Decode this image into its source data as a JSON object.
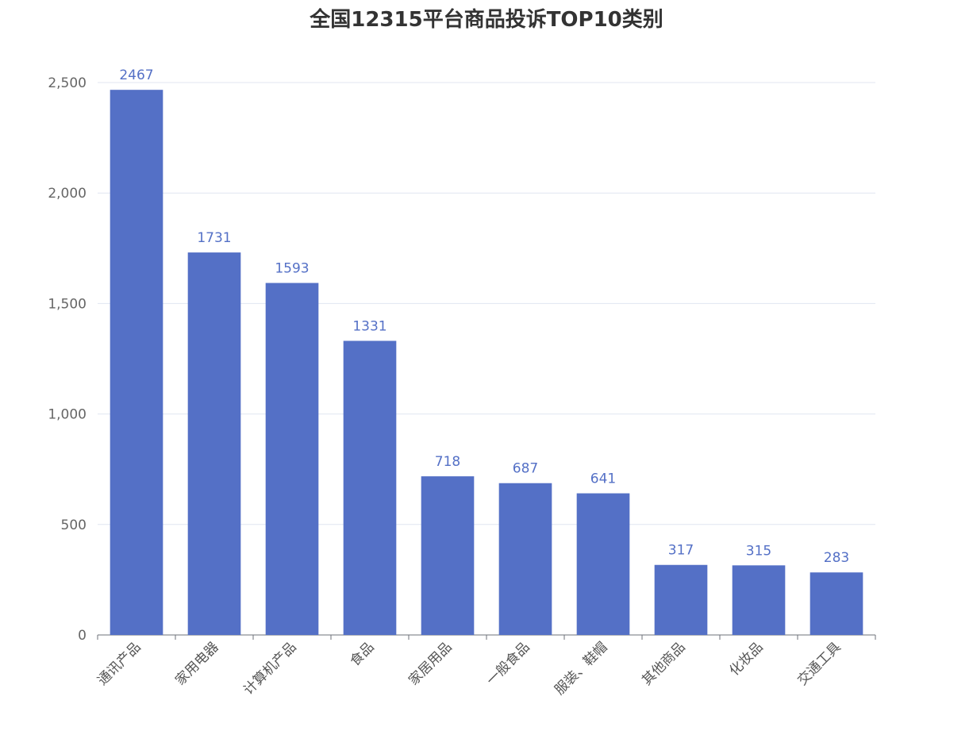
{
  "chart_data": {
    "type": "bar",
    "title": "全国12315平台商品投诉TOP10类别",
    "categories": [
      "通讯产品",
      "家用电器",
      "计算机产品",
      "食品",
      "家居用品",
      "一般食品",
      "服装、鞋帽",
      "其他商品",
      "化妆品",
      "交通工具"
    ],
    "values": [
      2467,
      1731,
      1593,
      1331,
      718,
      687,
      641,
      317,
      315,
      283
    ],
    "ylim": [
      0,
      2500
    ],
    "yticks": [
      0,
      500,
      1000,
      1500,
      2000,
      2500
    ],
    "ytick_labels": [
      "0",
      "500",
      "1,000",
      "1,500",
      "2,000",
      "2,500"
    ],
    "grid": true,
    "xlabel": "",
    "ylabel": "",
    "bar_color": "#5470c6",
    "label_color": "#5470c6",
    "grid_color": "#e0e6f1",
    "axis_color": "#6e7079"
  }
}
